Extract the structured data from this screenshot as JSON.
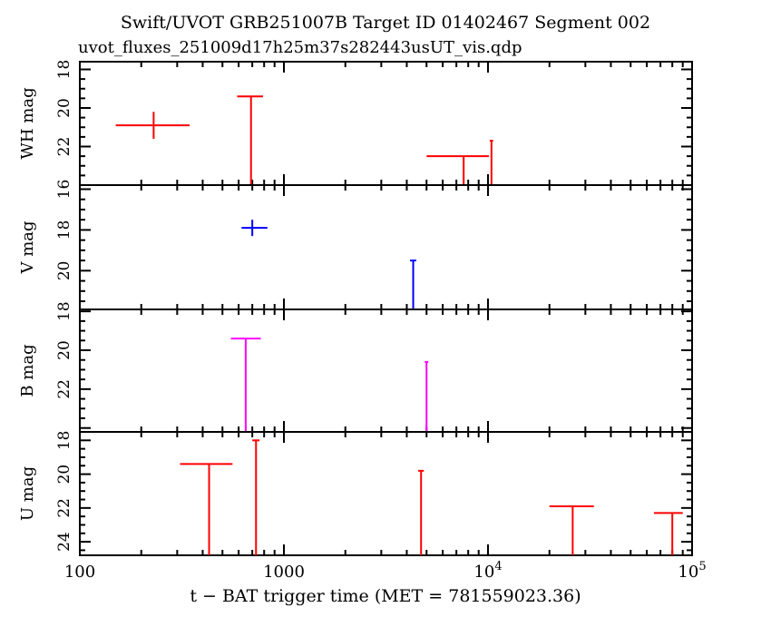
{
  "title": "Swift/UVOT GRB251007B Target ID 01402467 Segment 002",
  "subtitle": "uvot_fluxes_251009d17h25m37s282443usUT_vis.qdp",
  "colors": {
    "red": "#ff0000",
    "blue": "#0000ff",
    "magenta": "#ff00ff",
    "axis": "#000000"
  },
  "chart_data": {
    "type": "scatter",
    "xscale": "log",
    "xlim": [
      100,
      100000
    ],
    "xlabel": "t − BAT trigger time (MET = 781559023.36)",
    "xticks": [
      {
        "value": 100,
        "label": "100"
      },
      {
        "value": 1000,
        "label": "1000"
      },
      {
        "value": 10000,
        "label": "10",
        "sup": "4"
      },
      {
        "value": 100000,
        "label": "10",
        "sup": "5"
      }
    ],
    "panels": [
      {
        "id": "wh",
        "ylabel": "WH mag",
        "ylim": [
          24,
          17.6
        ],
        "color": "#ff0000",
        "yticks": [
          {
            "value": 18,
            "label": "18"
          },
          {
            "value": 20,
            "label": "20"
          },
          {
            "value": 22,
            "label": "22"
          }
        ],
        "points": [
          {
            "t": 230,
            "tlo": 150,
            "thi": 345,
            "mag": 20.9,
            "err": 0.7
          },
          {
            "t": 690,
            "tlo": 590,
            "thi": 790,
            "mag": 19.4,
            "upper_limit": true
          },
          {
            "t": 7600,
            "tlo": 5000,
            "thi": 10100,
            "mag": 22.5,
            "upper_limit": true
          },
          {
            "t": 10400,
            "tlo": 10200,
            "thi": 10600,
            "mag": 21.7,
            "upper_limit": true
          }
        ]
      },
      {
        "id": "v",
        "ylabel": "V mag",
        "ylim": [
          21.9,
          15.8
        ],
        "color": "#0000ff",
        "yticks": [
          {
            "value": 16,
            "label": "16"
          },
          {
            "value": 18,
            "label": "18"
          },
          {
            "value": 20,
            "label": "20"
          }
        ],
        "points": [
          {
            "t": 700,
            "tlo": 620,
            "thi": 830,
            "mag": 17.9,
            "err": 0.4
          },
          {
            "t": 4300,
            "tlo": 4150,
            "thi": 4450,
            "mag": 19.5,
            "upper_limit": true
          }
        ]
      },
      {
        "id": "b",
        "ylabel": "B mag",
        "ylim": [
          24.2,
          17.9
        ],
        "color": "#ff00ff",
        "yticks": [
          {
            "value": 18,
            "label": "18"
          },
          {
            "value": 20,
            "label": "20"
          },
          {
            "value": 22,
            "label": "22"
          }
        ],
        "points": [
          {
            "t": 650,
            "tlo": 550,
            "thi": 770,
            "mag": 19.4,
            "upper_limit": true
          },
          {
            "t": 5000,
            "tlo": 4900,
            "thi": 5100,
            "mag": 20.6,
            "upper_limit": true
          }
        ]
      },
      {
        "id": "u",
        "ylabel": "U mag",
        "ylim": [
          24.8,
          17.5
        ],
        "color": "#ff0000",
        "yticks": [
          {
            "value": 18,
            "label": "18"
          },
          {
            "value": 20,
            "label": "20"
          },
          {
            "value": 22,
            "label": "22"
          },
          {
            "value": 24,
            "label": "24"
          }
        ],
        "points": [
          {
            "t": 430,
            "tlo": 310,
            "thi": 560,
            "mag": 19.4,
            "upper_limit": true
          },
          {
            "t": 730,
            "tlo": 700,
            "thi": 760,
            "mag": 18.0,
            "upper_limit": true
          },
          {
            "t": 4700,
            "tlo": 4550,
            "thi": 4850,
            "mag": 19.8,
            "upper_limit": true
          },
          {
            "t": 26000,
            "tlo": 20000,
            "thi": 33000,
            "mag": 21.9,
            "upper_limit": true
          },
          {
            "t": 80000,
            "tlo": 65000,
            "thi": 90000,
            "mag": 22.3,
            "upper_limit": true
          }
        ]
      }
    ]
  }
}
